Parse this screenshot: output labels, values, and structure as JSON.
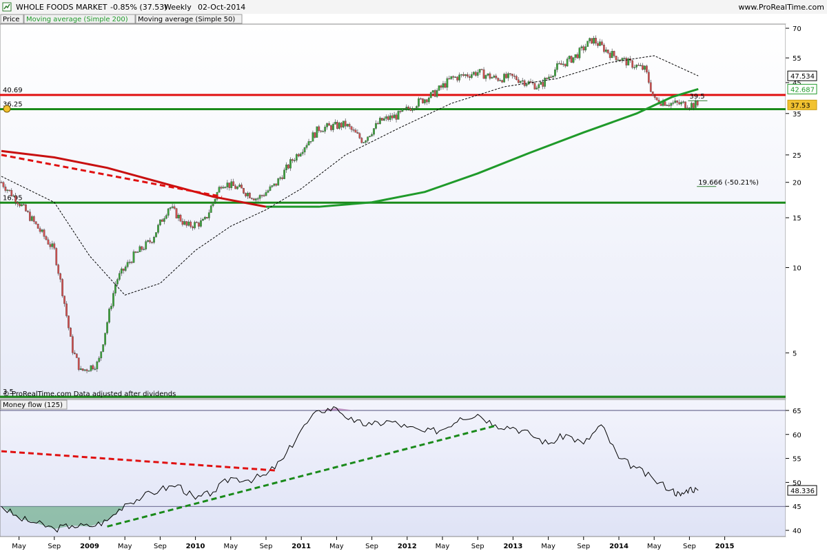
{
  "header": {
    "symbol": "WHOLE FOODS MARKET",
    "change": "-0.85% (37.53)",
    "period": "Weekly",
    "date": "02-Oct-2014",
    "site": "www.ProRealTime.com"
  },
  "legend": {
    "price": "Price",
    "ma200": "Moving average (Simple 200)",
    "ma50": "Moving average (Simple 50)"
  },
  "footer_note": "© ProRealTime.com  Data adjusted after dividends",
  "indicator_title": "Money flow (125)",
  "colors": {
    "ma200_up": "#1f9a2a",
    "ma200_down": "#c81010",
    "ma50": "#000000",
    "level_red": "#e01010",
    "level_green": "#1a8a1a",
    "candle_up": "#3aa33a",
    "candle_down": "#d05050",
    "panel_bg": "#eef0fb"
  },
  "chart_data": [
    {
      "type": "candlestick",
      "name": "Price",
      "yscale": "log",
      "ylim": [
        3.5,
        72
      ],
      "x_labels": [
        "May",
        "Sep",
        "2009",
        "May",
        "Sep",
        "2010",
        "May",
        "Sep",
        "2011",
        "May",
        "Sep",
        "2012",
        "May",
        "Sep",
        "2013",
        "May",
        "Sep",
        "2014",
        "May",
        "Sep",
        "2015"
      ],
      "y_ticks": [
        70,
        55,
        45,
        35,
        25,
        20,
        15,
        10,
        5
      ],
      "levels": [
        {
          "value": 40.69,
          "label": "40.69",
          "color": "red"
        },
        {
          "value": 36.25,
          "label": "36.25",
          "color": "green"
        },
        {
          "value": 16.95,
          "label": "16.95",
          "color": "green"
        },
        {
          "value": 3.5,
          "label": "3.5",
          "color": "green"
        }
      ],
      "price_tags": [
        {
          "value": 47.534,
          "label": "47.534",
          "series": "Moving average (Simple 50)"
        },
        {
          "value": 42.687,
          "label": "42.687",
          "series": "Moving average (Simple 200)"
        },
        {
          "value": 37.53,
          "label": "37.53",
          "series": "Price"
        }
      ],
      "annotations": [
        {
          "label": "39.5",
          "x": "2014-09",
          "y": 39.5
        },
        {
          "label": "19.666 (-50.21%)",
          "x": "2014-10",
          "y": 19.666
        }
      ],
      "close_approx": [
        {
          "x": "2008-03",
          "y": 20.0
        },
        {
          "x": "2008-05",
          "y": 17.0
        },
        {
          "x": "2008-07",
          "y": 14.0
        },
        {
          "x": "2008-09",
          "y": 11.5
        },
        {
          "x": "2008-10",
          "y": 8.0
        },
        {
          "x": "2008-11",
          "y": 5.2
        },
        {
          "x": "2008-12",
          "y": 4.3
        },
        {
          "x": "2009-02",
          "y": 4.6
        },
        {
          "x": "2009-04",
          "y": 9.0
        },
        {
          "x": "2009-06",
          "y": 11.0
        },
        {
          "x": "2009-08",
          "y": 12.5
        },
        {
          "x": "2009-10",
          "y": 16.5
        },
        {
          "x": "2009-12",
          "y": 14.0
        },
        {
          "x": "2010-02",
          "y": 14.5
        },
        {
          "x": "2010-04",
          "y": 20.0
        },
        {
          "x": "2010-06",
          "y": 19.0
        },
        {
          "x": "2010-08",
          "y": 17.5
        },
        {
          "x": "2010-10",
          "y": 19.5
        },
        {
          "x": "2010-12",
          "y": 24.0
        },
        {
          "x": "2011-03",
          "y": 31.0
        },
        {
          "x": "2011-06",
          "y": 32.0
        },
        {
          "x": "2011-08",
          "y": 28.0
        },
        {
          "x": "2011-10",
          "y": 33.0
        },
        {
          "x": "2011-12",
          "y": 34.5
        },
        {
          "x": "2012-02",
          "y": 38.0
        },
        {
          "x": "2012-04",
          "y": 41.0
        },
        {
          "x": "2012-06",
          "y": 46.5
        },
        {
          "x": "2012-09",
          "y": 49.0
        },
        {
          "x": "2012-11",
          "y": 46.5
        },
        {
          "x": "2013-01",
          "y": 47.0
        },
        {
          "x": "2013-04",
          "y": 43.5
        },
        {
          "x": "2013-06",
          "y": 51.0
        },
        {
          "x": "2013-08",
          "y": 55.5
        },
        {
          "x": "2013-10",
          "y": 64.0
        },
        {
          "x": "2013-12",
          "y": 57.0
        },
        {
          "x": "2014-02",
          "y": 53.0
        },
        {
          "x": "2014-04",
          "y": 50.0
        },
        {
          "x": "2014-05",
          "y": 39.0
        },
        {
          "x": "2014-07",
          "y": 38.0
        },
        {
          "x": "2014-10",
          "y": 37.53
        }
      ],
      "series": [
        {
          "name": "Moving average (Simple 200)",
          "points": [
            {
              "x": "2008-03",
              "y": 25.8
            },
            {
              "x": "2008-09",
              "y": 24.5
            },
            {
              "x": "2009-03",
              "y": 22.5
            },
            {
              "x": "2009-09",
              "y": 20.0
            },
            {
              "x": "2010-03",
              "y": 17.8
            },
            {
              "x": "2010-09",
              "y": 16.4
            },
            {
              "x": "2011-03",
              "y": 16.4
            },
            {
              "x": "2011-09",
              "y": 17.0
            },
            {
              "x": "2012-03",
              "y": 18.5
            },
            {
              "x": "2012-09",
              "y": 21.5
            },
            {
              "x": "2013-03",
              "y": 25.5
            },
            {
              "x": "2013-09",
              "y": 30.0
            },
            {
              "x": "2014-03",
              "y": 35.0
            },
            {
              "x": "2014-07",
              "y": 40.0
            },
            {
              "x": "2014-10",
              "y": 42.687
            }
          ]
        },
        {
          "name": "Moving average (Simple 50)",
          "points": [
            {
              "x": "2008-03",
              "y": 21.0
            },
            {
              "x": "2008-09",
              "y": 17.0
            },
            {
              "x": "2009-01",
              "y": 11.0
            },
            {
              "x": "2009-05",
              "y": 8.0
            },
            {
              "x": "2009-09",
              "y": 8.8
            },
            {
              "x": "2010-01",
              "y": 11.5
            },
            {
              "x": "2010-05",
              "y": 14.0
            },
            {
              "x": "2010-09",
              "y": 16.0
            },
            {
              "x": "2011-01",
              "y": 19.0
            },
            {
              "x": "2011-06",
              "y": 25.0
            },
            {
              "x": "2011-12",
              "y": 31.0
            },
            {
              "x": "2012-06",
              "y": 38.0
            },
            {
              "x": "2012-12",
              "y": 43.5
            },
            {
              "x": "2013-06",
              "y": 46.5
            },
            {
              "x": "2013-12",
              "y": 53.0
            },
            {
              "x": "2014-05",
              "y": 56.0
            },
            {
              "x": "2014-10",
              "y": 47.534
            }
          ]
        }
      ],
      "trendlines": [
        {
          "color": "red",
          "style": "dashed",
          "from": {
            "x": "2008-03",
            "y": 25.0
          },
          "to": {
            "x": "2010-04",
            "y": 17.8
          }
        }
      ]
    },
    {
      "type": "line",
      "name": "Money flow (125)",
      "ylim": [
        39,
        67
      ],
      "y_ticks": [
        65,
        60,
        55,
        50,
        45,
        40
      ],
      "levels": [
        65,
        45
      ],
      "current": {
        "value": 48.336,
        "label": "48.336"
      },
      "points": [
        {
          "x": "2008-03",
          "y": 45.0
        },
        {
          "x": "2008-05",
          "y": 42.5
        },
        {
          "x": "2008-07",
          "y": 41.5
        },
        {
          "x": "2008-09",
          "y": 40.3
        },
        {
          "x": "2008-11",
          "y": 41.0
        },
        {
          "x": "2009-01",
          "y": 40.8
        },
        {
          "x": "2009-03",
          "y": 42.0
        },
        {
          "x": "2009-05",
          "y": 45.5
        },
        {
          "x": "2009-07",
          "y": 47.0
        },
        {
          "x": "2009-09",
          "y": 48.5
        },
        {
          "x": "2009-11",
          "y": 49.5
        },
        {
          "x": "2010-01",
          "y": 46.5
        },
        {
          "x": "2010-03",
          "y": 48.0
        },
        {
          "x": "2010-05",
          "y": 51.0
        },
        {
          "x": "2010-07",
          "y": 50.5
        },
        {
          "x": "2010-09",
          "y": 51.5
        },
        {
          "x": "2010-11",
          "y": 55.0
        },
        {
          "x": "2011-01",
          "y": 61.0
        },
        {
          "x": "2011-03",
          "y": 65.0
        },
        {
          "x": "2011-05",
          "y": 65.5
        },
        {
          "x": "2011-07",
          "y": 62.5
        },
        {
          "x": "2011-09",
          "y": 62.0
        },
        {
          "x": "2011-11",
          "y": 62.8
        },
        {
          "x": "2012-01",
          "y": 61.5
        },
        {
          "x": "2012-03",
          "y": 60.5
        },
        {
          "x": "2012-05",
          "y": 61.0
        },
        {
          "x": "2012-07",
          "y": 63.5
        },
        {
          "x": "2012-09",
          "y": 64.2
        },
        {
          "x": "2012-11",
          "y": 62.0
        },
        {
          "x": "2013-01",
          "y": 61.5
        },
        {
          "x": "2013-03",
          "y": 60.0
        },
        {
          "x": "2013-05",
          "y": 58.0
        },
        {
          "x": "2013-07",
          "y": 60.0
        },
        {
          "x": "2013-09",
          "y": 58.0
        },
        {
          "x": "2013-11",
          "y": 62.0
        },
        {
          "x": "2014-01",
          "y": 55.0
        },
        {
          "x": "2014-03",
          "y": 53.0
        },
        {
          "x": "2014-05",
          "y": 50.5
        },
        {
          "x": "2014-07",
          "y": 48.5
        },
        {
          "x": "2014-08",
          "y": 47.2
        },
        {
          "x": "2014-09",
          "y": 48.8
        },
        {
          "x": "2014-10",
          "y": 48.336
        }
      ],
      "trendlines": [
        {
          "color": "red",
          "style": "dashed",
          "from": {
            "x": "2008-03",
            "y": 56.5
          },
          "to": {
            "x": "2010-10",
            "y": 52.5
          }
        },
        {
          "color": "green",
          "style": "dashed",
          "from": {
            "x": "2009-03",
            "y": 40.8
          },
          "to": {
            "x": "2012-11",
            "y": 61.8
          }
        }
      ]
    }
  ]
}
